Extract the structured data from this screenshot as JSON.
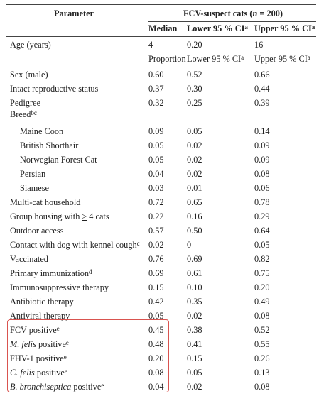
{
  "header": {
    "parameter": "Parameter",
    "group_prefix": "FCV-suspect cats (",
    "group_n": "n",
    "group_suffix": " = 200)",
    "col_median": "Median",
    "col_lower": "Lower 95 % CI",
    "col_upper": "Upper 95 % CI",
    "sup_a": "a"
  },
  "age_row": {
    "label": "Age (years)",
    "v1": "4",
    "v2": "0.20",
    "v3": "16"
  },
  "subheader": {
    "c1": "Proportion",
    "c2": "Lower 95 % CI",
    "c3": "Upper 95 % CI",
    "sup": "a"
  },
  "rows": [
    {
      "label": "Sex (male)",
      "v1": "0.60",
      "v2": "0.52",
      "v3": "0.66"
    },
    {
      "label": "Intact reproductive status",
      "v1": "0.37",
      "v2": "0.30",
      "v3": "0.44"
    },
    {
      "label": "Pedigree",
      "v1": "0.32",
      "v2": "0.25",
      "v3": "0.39"
    },
    {
      "label": "Breed",
      "sup": "bc"
    },
    {
      "label": "Maine Coon",
      "v1": "0.09",
      "v2": "0.05",
      "v3": "0.14"
    },
    {
      "label": "British Shorthair",
      "v1": "0.05",
      "v2": "0.02",
      "v3": "0.09"
    },
    {
      "label": "Norwegian Forest Cat",
      "v1": "0.05",
      "v2": "0.02",
      "v3": "0.09"
    },
    {
      "label": "Persian",
      "v1": "0.04",
      "v2": "0.02",
      "v3": "0.08"
    },
    {
      "label": "Siamese",
      "v1": "0.03",
      "v2": "0.01",
      "v3": "0.06"
    },
    {
      "label": "Multi-cat household",
      "v1": "0.72",
      "v2": "0.65",
      "v3": "0.78"
    },
    {
      "label": "Group housing with ",
      "label2": "≥",
      "label3": " 4 cats",
      "v1": "0.22",
      "v2": "0.16",
      "v3": "0.29"
    },
    {
      "label": "Outdoor access",
      "v1": "0.57",
      "v2": "0.50",
      "v3": "0.64"
    },
    {
      "label": "Contact with dog with kennel cough",
      "sup": "c",
      "v1": "0.02",
      "v2": "0",
      "v3": "0.05"
    },
    {
      "label": "Vaccinated",
      "v1": "0.76",
      "v2": "0.69",
      "v3": "0.82"
    },
    {
      "label": "Primary immunization",
      "sup": "d",
      "v1": "0.69",
      "v2": "0.61",
      "v3": "0.75"
    },
    {
      "label": "Immunosuppressive therapy",
      "v1": "0.15",
      "v2": "0.10",
      "v3": "0.20"
    },
    {
      "label": "Antibiotic therapy",
      "v1": "0.42",
      "v2": "0.35",
      "v3": "0.49"
    },
    {
      "label": "Antiviral therapy",
      "v1": "0.05",
      "v2": "0.02",
      "v3": "0.08"
    },
    {
      "label": "FCV positive",
      "sup": "e",
      "v1": "0.45",
      "v2": "0.38",
      "v3": "0.52"
    },
    {
      "label": "M. felis",
      "label_rest": " positive",
      "sup": "e",
      "v1": "0.48",
      "v2": "0.41",
      "v3": "0.55"
    },
    {
      "label": "FHV-1 positive",
      "sup": "e",
      "v1": "0.20",
      "v2": "0.15",
      "v3": "0.26"
    },
    {
      "label": "C. felis",
      "label_rest": " positive",
      "sup": "e",
      "v1": "0.08",
      "v2": "0.05",
      "v3": "0.13"
    },
    {
      "label": "B. bronchiseptica",
      "label_rest": " positive",
      "sup": "e",
      "v1": "0.04",
      "v2": "0.02",
      "v3": "0.08"
    }
  ],
  "highlight_color": "#d9534f"
}
